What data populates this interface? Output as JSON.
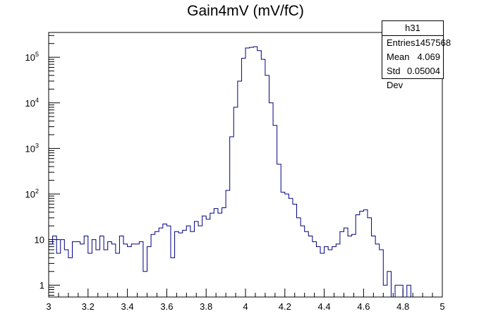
{
  "chart_data": {
    "type": "histogram",
    "title": "Gain4mV (mV/fC)",
    "xlabel": "",
    "ylabel": "",
    "xlim": [
      3,
      5
    ],
    "ylim": [
      0.55,
      350000
    ],
    "yscale": "log",
    "x_ticks": [
      "3",
      "3.2",
      "3.4",
      "3.6",
      "3.8",
      "4",
      "4.2",
      "4.4",
      "4.6",
      "4.8",
      "5"
    ],
    "y_ticks": [
      {
        "base": "1",
        "exp": ""
      },
      {
        "base": "10",
        "exp": ""
      },
      {
        "base": "10",
        "exp": "2"
      },
      {
        "base": "10",
        "exp": "3"
      },
      {
        "base": "10",
        "exp": "4"
      },
      {
        "base": "10",
        "exp": "5"
      }
    ],
    "bin_width": 0.02,
    "line_color": "#000080",
    "grid": false,
    "legend": "none",
    "bins": {
      "x_low": [
        3.0,
        3.02,
        3.04,
        3.06,
        3.08,
        3.1,
        3.12,
        3.14,
        3.16,
        3.18,
        3.2,
        3.22,
        3.24,
        3.26,
        3.28,
        3.3,
        3.32,
        3.34,
        3.36,
        3.38,
        3.4,
        3.42,
        3.44,
        3.46,
        3.48,
        3.5,
        3.52,
        3.54,
        3.56,
        3.58,
        3.6,
        3.62,
        3.64,
        3.66,
        3.68,
        3.7,
        3.72,
        3.74,
        3.76,
        3.78,
        3.8,
        3.82,
        3.84,
        3.86,
        3.88,
        3.9,
        3.92,
        3.94,
        3.96,
        3.98,
        4.0,
        4.02,
        4.04,
        4.06,
        4.08,
        4.1,
        4.12,
        4.14,
        4.16,
        4.18,
        4.2,
        4.22,
        4.24,
        4.26,
        4.28,
        4.3,
        4.32,
        4.34,
        4.36,
        4.38,
        4.4,
        4.42,
        4.44,
        4.46,
        4.48,
        4.5,
        4.52,
        4.54,
        4.56,
        4.58,
        4.6,
        4.62,
        4.64,
        4.66,
        4.68,
        4.7,
        4.72,
        4.74,
        4.76,
        4.78,
        4.8,
        4.82,
        4.84,
        4.86,
        4.88,
        4.9,
        4.92,
        4.94,
        4.96,
        4.98
      ],
      "counts": [
        8,
        12,
        5,
        10,
        6,
        4,
        9,
        9,
        8,
        12,
        5,
        10,
        6,
        12,
        6,
        9,
        8,
        5,
        12,
        8,
        7,
        8,
        8,
        9,
        2,
        7,
        13,
        15,
        18,
        22,
        20,
        4,
        15,
        14,
        16,
        20,
        15,
        25,
        20,
        33,
        28,
        38,
        48,
        38,
        50,
        120,
        1800,
        8000,
        30000,
        95000,
        160000,
        165000,
        170000,
        140000,
        90000,
        40000,
        10000,
        3200,
        450,
        110,
        100,
        80,
        60,
        30,
        20,
        15,
        12,
        9,
        7,
        5,
        7,
        6,
        7,
        8,
        15,
        18,
        12,
        13,
        35,
        42,
        45,
        30,
        12,
        8,
        6,
        1,
        2,
        0,
        1,
        1,
        0,
        1,
        0,
        0,
        0,
        0,
        0,
        0,
        0,
        0
      ]
    }
  },
  "stats": {
    "name": "h31",
    "rows": [
      {
        "label": "Entries",
        "value": "1457568"
      },
      {
        "label": "Mean",
        "value": "4.069"
      },
      {
        "label": "Std Dev",
        "value": "0.05004"
      }
    ]
  }
}
